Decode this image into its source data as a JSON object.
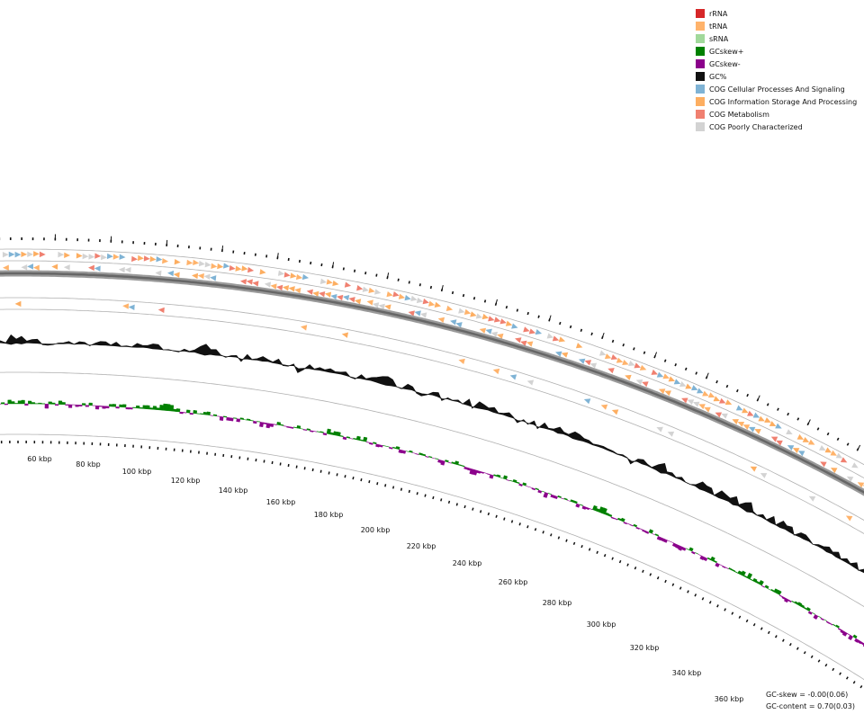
{
  "legend": [
    {
      "label": "rRNA",
      "color": "#d62728"
    },
    {
      "label": "tRNA",
      "color": "#ffb36b"
    },
    {
      "label": "sRNA",
      "color": "#a1d99b"
    },
    {
      "label": "GCskew+",
      "color": "#008000"
    },
    {
      "label": "GCskew-",
      "color": "#8b008b"
    },
    {
      "label": "GC%",
      "color": "#111111"
    },
    {
      "label": "COG Cellular Processes And Signaling",
      "color": "#7fb3d5"
    },
    {
      "label": "COG Information Storage And Processing",
      "color": "#fdae61"
    },
    {
      "label": "COG Metabolism",
      "color": "#f08070"
    },
    {
      "label": "COG Poorly Characterized",
      "color": "#d3d3d3"
    }
  ],
  "axis": {
    "unit": "kbp",
    "tick_labels": [
      "60 kbp",
      "80 kbp",
      "100 kbp",
      "120 kbp",
      "140 kbp",
      "160 kbp",
      "180 kbp",
      "200 kbp",
      "220 kbp",
      "240 kbp",
      "260 kbp",
      "280 kbp",
      "300 kbp",
      "320 kbp",
      "340 kbp",
      "360 kbp"
    ]
  },
  "stats": {
    "gc_skew": "GC-skew = -0.00(0.06)",
    "gc_content": "GC-content = 0.70(0.03)"
  },
  "colors": {
    "backbone": "#888888",
    "ring_line": "#b0b0b0",
    "gc_percent": "#111111",
    "gc_skew_pos": "#008000",
    "gc_skew_neg": "#8b008b"
  }
}
